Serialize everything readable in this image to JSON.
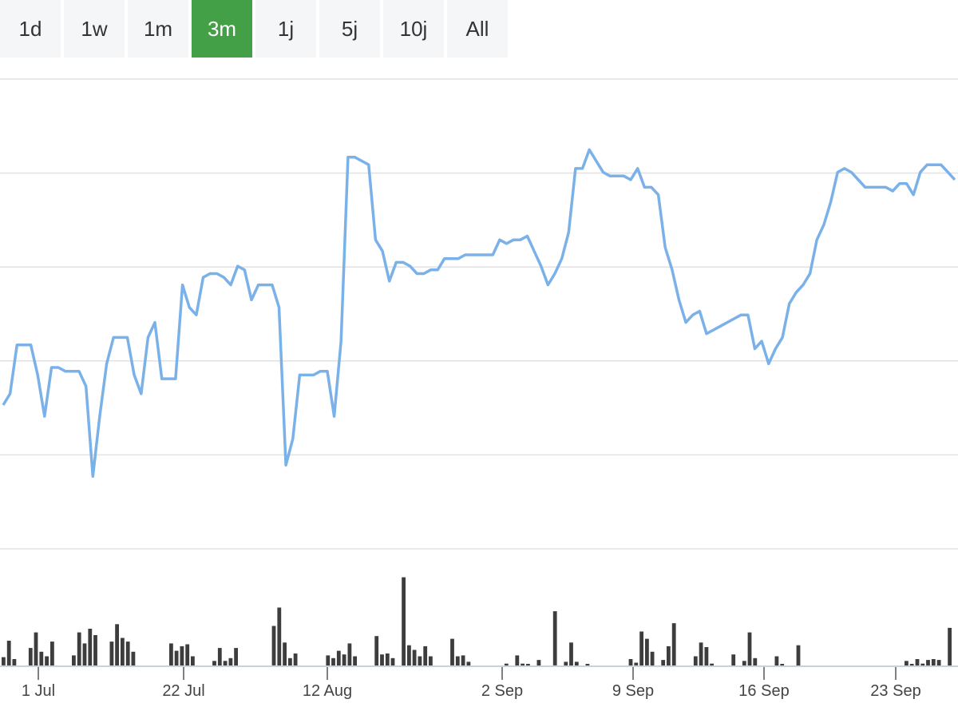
{
  "ranges": [
    {
      "label": "1d",
      "active": false
    },
    {
      "label": "1w",
      "active": false
    },
    {
      "label": "1m",
      "active": false
    },
    {
      "label": "3m",
      "active": true
    },
    {
      "label": "1j",
      "active": false
    },
    {
      "label": "5j",
      "active": false
    },
    {
      "label": "10j",
      "active": false
    },
    {
      "label": "All",
      "active": false
    }
  ],
  "colors": {
    "price_line": "#7ab1e8",
    "volume_bar": "#3d3d3d",
    "active_range": "#43a047"
  },
  "chart_data": {
    "type": "line",
    "x_axis_ticks": [
      "1 Jul",
      "22 Jul",
      "12 Aug",
      "2 Sep",
      "9 Sep",
      "16 Sep",
      "23 Sep"
    ],
    "y_tick_count": 5,
    "grid": true,
    "legend": "none",
    "price_series_relative": [
      0.3,
      0.33,
      0.46,
      0.46,
      0.46,
      0.38,
      0.27,
      0.4,
      0.4,
      0.39,
      0.39,
      0.39,
      0.35,
      0.11,
      0.27,
      0.41,
      0.48,
      0.48,
      0.48,
      0.38,
      0.33,
      0.48,
      0.52,
      0.37,
      0.37,
      0.37,
      0.62,
      0.56,
      0.54,
      0.64,
      0.65,
      0.65,
      0.64,
      0.62,
      0.67,
      0.66,
      0.58,
      0.62,
      0.62,
      0.62,
      0.56,
      0.14,
      0.21,
      0.38,
      0.38,
      0.38,
      0.39,
      0.39,
      0.27,
      0.47,
      0.96,
      0.96,
      0.95,
      0.94,
      0.74,
      0.71,
      0.63,
      0.68,
      0.68,
      0.67,
      0.65,
      0.65,
      0.66,
      0.66,
      0.69,
      0.69,
      0.69,
      0.7,
      0.7,
      0.7,
      0.7,
      0.7,
      0.74,
      0.73,
      0.74,
      0.74,
      0.75,
      0.71,
      0.67,
      0.62,
      0.65,
      0.69,
      0.76,
      0.93,
      0.93,
      0.98,
      0.95,
      0.92,
      0.91,
      0.91,
      0.91,
      0.9,
      0.93,
      0.88,
      0.88,
      0.86,
      0.72,
      0.66,
      0.58,
      0.52,
      0.54,
      0.55,
      0.49,
      0.5,
      0.51,
      0.52,
      0.53,
      0.54,
      0.54,
      0.45,
      0.47,
      0.41,
      0.45,
      0.48,
      0.57,
      0.6,
      0.62,
      0.65,
      0.74,
      0.78,
      0.84,
      0.92,
      0.93,
      0.92,
      0.9,
      0.88,
      0.88,
      0.88,
      0.88,
      0.87,
      0.89,
      0.89,
      0.86,
      0.92,
      0.94,
      0.94,
      0.94,
      0.92,
      0.9
    ],
    "volume_series_relative": [
      0.09,
      0.27,
      0.07,
      0,
      0,
      0.19,
      0.36,
      0.15,
      0.1,
      0.26,
      0,
      0,
      0,
      0.11,
      0.36,
      0.24,
      0.4,
      0.33,
      0,
      0,
      0.26,
      0.45,
      0.3,
      0.26,
      0.15,
      0,
      0,
      0,
      0,
      0,
      0,
      0.24,
      0.16,
      0.21,
      0.23,
      0.1,
      0,
      0,
      0,
      0.05,
      0.19,
      0.05,
      0.08,
      0.19,
      0,
      0,
      0,
      0,
      0,
      0,
      0.43,
      0.63,
      0.25,
      0.08,
      0.13,
      0,
      0,
      0,
      0,
      0,
      0.11,
      0.08,
      0.16,
      0.12,
      0.24,
      0.1,
      0,
      0,
      0,
      0.32,
      0.12,
      0.13,
      0.08,
      0,
      0.96,
      0.22,
      0.17,
      0.1,
      0.21,
      0.1,
      0,
      0,
      0,
      0.29,
      0.1,
      0.11,
      0.04,
      0,
      0,
      0,
      0,
      0,
      0,
      0.02,
      0,
      0.11,
      0.02,
      0.01,
      0.0,
      0.06,
      0,
      0,
      0.59,
      0,
      0.04,
      0.25,
      0.04,
      0,
      0.01,
      0,
      0,
      0,
      0,
      0,
      0,
      0,
      0.07,
      0.03,
      0.37,
      0.29,
      0.15,
      0,
      0.06,
      0.21,
      0.46,
      0,
      0,
      0,
      0.1,
      0.25,
      0.2,
      0.02,
      0,
      0,
      0,
      0.12,
      0,
      0.05,
      0.36,
      0.08,
      0,
      0,
      0,
      0.1,
      0.01,
      0,
      0,
      0.22,
      0,
      0,
      0,
      0,
      0,
      0,
      0,
      0,
      0,
      0,
      0,
      0,
      0,
      0,
      0,
      0,
      0,
      0,
      0,
      0.05,
      0.01,
      0.07,
      0.02,
      0.06,
      0.07,
      0.06,
      0,
      0.41
    ]
  }
}
